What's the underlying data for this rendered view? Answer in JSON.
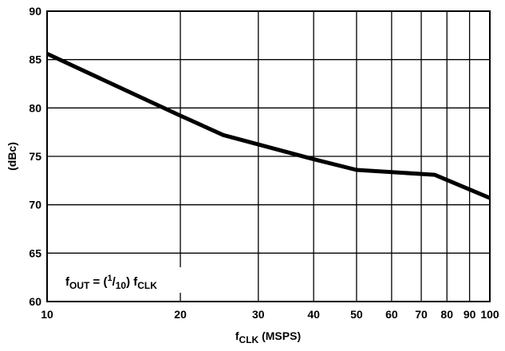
{
  "chart_data": {
    "type": "line",
    "x_scale": "log",
    "xlim": [
      10,
      100
    ],
    "ylim": [
      60,
      90
    ],
    "x_ticks": [
      10,
      20,
      30,
      40,
      50,
      60,
      70,
      80,
      90,
      100
    ],
    "y_ticks": [
      60,
      65,
      70,
      75,
      80,
      85,
      90
    ],
    "x_tick_labels": [
      "10",
      "20",
      "30",
      "40",
      "50",
      "60",
      "70",
      "80",
      "90",
      "100"
    ],
    "y_tick_labels": [
      "60",
      "65",
      "70",
      "75",
      "80",
      "85",
      "90"
    ],
    "xlabel": {
      "main": "f",
      "sub": "CLK",
      "rest": " (MSPS)"
    },
    "ylabel": "(dBc)",
    "grid": true,
    "annotation": {
      "f": "f",
      "out_sub": "OUT",
      "eq": " = (",
      "num_sup": "1",
      "slash": "/",
      "den_sub": "10",
      "close": ") f",
      "clk_sub": "CLK"
    },
    "series": [
      {
        "x": [
          10,
          20,
          25,
          40,
          50,
          75,
          100
        ],
        "y": [
          85.6,
          79.2,
          77.2,
          74.7,
          73.6,
          73.1,
          70.7
        ]
      }
    ]
  }
}
